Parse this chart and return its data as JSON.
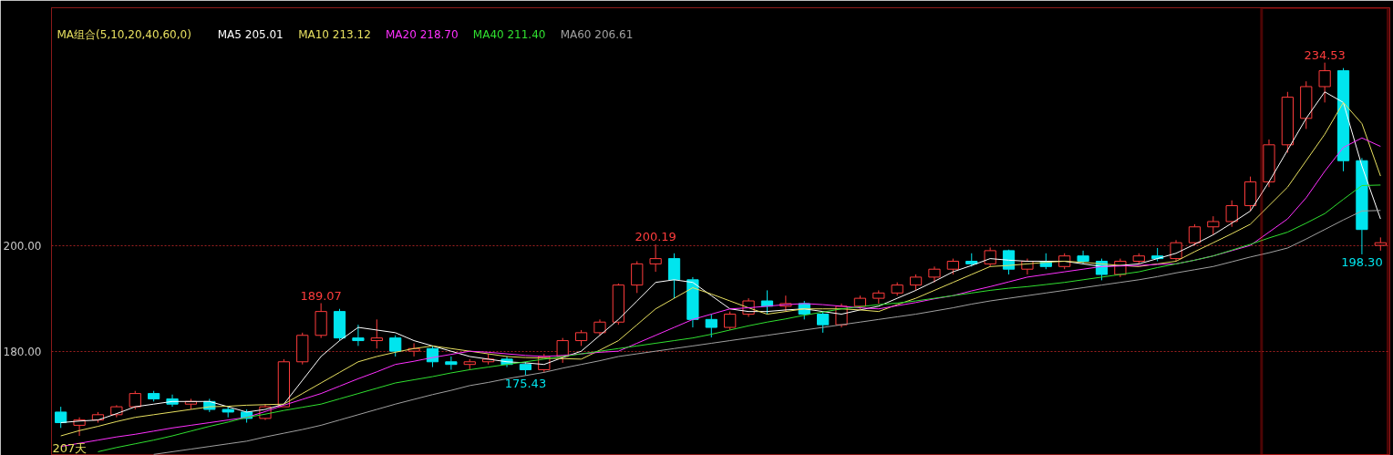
{
  "chart_data": {
    "type": "candlestick",
    "legend_title": "MA组合(5,10,20,40,60,0)",
    "legend": "top left",
    "grid": "y",
    "tick_labels": "y",
    "categories": [
      null,
      null,
      null,
      null,
      null,
      null,
      null,
      null,
      null,
      null,
      null,
      null,
      null,
      null,
      null,
      null,
      null,
      null,
      null,
      null,
      null,
      null,
      null,
      null,
      null,
      null,
      null,
      null,
      null,
      null,
      null,
      null,
      null,
      null,
      null,
      null,
      null,
      null,
      null,
      null,
      null,
      null,
      null,
      null,
      null,
      null,
      null,
      null,
      null,
      null,
      null,
      null,
      null,
      null,
      null,
      null,
      null,
      null,
      null,
      null,
      null,
      null,
      null,
      null,
      null,
      null,
      null,
      null,
      null,
      null,
      null,
      null
    ],
    "ylim": [
      160.3,
      244.9
    ],
    "yticks": [
      {
        "value": 180,
        "label": "180.00"
      },
      {
        "value": 200,
        "label": "200.00"
      }
    ],
    "ohlc": [
      [
        168.5,
        169.5,
        165.5,
        166.5
      ],
      [
        166,
        167.5,
        164,
        167
      ],
      [
        167,
        168.5,
        166.5,
        168
      ],
      [
        168,
        169.8,
        167.5,
        169.5
      ],
      [
        169.5,
        172.5,
        169,
        172
      ],
      [
        172,
        172.5,
        170.5,
        171
      ],
      [
        171,
        171.8,
        169.5,
        170
      ],
      [
        170,
        171,
        169,
        170.5
      ],
      [
        170.5,
        171,
        168.5,
        169
      ],
      [
        169,
        169.5,
        167.5,
        168.5
      ],
      [
        168.5,
        169,
        166.5,
        167.3
      ],
      [
        167.3,
        170,
        167,
        169.5
      ],
      [
        169.5,
        178.5,
        169.5,
        178
      ],
      [
        178,
        183.5,
        177.5,
        183
      ],
      [
        183,
        189.07,
        182.5,
        187.5
      ],
      [
        187.5,
        188,
        182,
        182.5
      ],
      [
        182.5,
        185,
        181,
        182
      ],
      [
        182,
        186,
        180.5,
        182.5
      ],
      [
        182.5,
        183,
        179,
        180
      ],
      [
        180,
        181.5,
        179,
        180.5
      ],
      [
        180.5,
        181,
        177,
        178
      ],
      [
        178,
        179,
        176.5,
        177.5
      ],
      [
        177.5,
        178.5,
        176.5,
        178
      ],
      [
        178,
        179.5,
        177.5,
        178.5
      ],
      [
        178.5,
        179,
        177,
        177.5
      ],
      [
        177.5,
        178,
        175.43,
        176.5
      ],
      [
        176.5,
        179.5,
        176,
        179
      ],
      [
        179,
        182.5,
        177.8,
        182
      ],
      [
        182,
        184,
        181,
        183.5
      ],
      [
        183.5,
        186,
        183,
        185.5
      ],
      [
        185.5,
        192.8,
        185,
        192.5
      ],
      [
        192.5,
        197,
        191,
        196.5
      ],
      [
        196.5,
        200.19,
        195,
        197.5
      ],
      [
        197.5,
        198.5,
        190,
        193.5
      ],
      [
        193.5,
        194,
        184.5,
        186
      ],
      [
        186,
        187,
        182.6,
        184.5
      ],
      [
        184.5,
        187.5,
        184,
        187
      ],
      [
        187,
        190,
        186.5,
        189.5
      ],
      [
        189.5,
        191.5,
        187,
        188.5
      ],
      [
        188.5,
        190.5,
        187.5,
        189
      ],
      [
        189,
        189.5,
        186,
        187
      ],
      [
        187,
        187.5,
        183.5,
        185
      ],
      [
        185,
        189,
        184.5,
        188.5
      ],
      [
        188.5,
        190.5,
        188,
        190
      ],
      [
        190,
        191.5,
        189,
        191
      ],
      [
        191,
        193,
        190.5,
        192.5
      ],
      [
        192.5,
        194.5,
        191.5,
        194
      ],
      [
        194,
        196,
        193,
        195.5
      ],
      [
        195.5,
        197.5,
        194.5,
        197
      ],
      [
        197,
        198.5,
        196,
        196.5
      ],
      [
        196.5,
        199.6,
        196,
        199
      ],
      [
        199,
        199.2,
        194.5,
        195.5
      ],
      [
        195.5,
        197.5,
        194.5,
        197
      ],
      [
        197,
        198.5,
        195.5,
        196
      ],
      [
        196,
        198.5,
        195.5,
        198
      ],
      [
        198,
        199,
        196.5,
        197
      ],
      [
        197,
        197.5,
        193.4,
        194.5
      ],
      [
        194.5,
        197.5,
        194,
        197
      ],
      [
        197,
        198.5,
        196.5,
        198
      ],
      [
        198,
        199.5,
        197,
        197.5
      ],
      [
        197.5,
        201,
        197,
        200.5
      ],
      [
        200.5,
        204,
        200,
        203.5
      ],
      [
        203.5,
        205.5,
        202,
        204.5
      ],
      [
        204.5,
        208.5,
        203.5,
        207.5
      ],
      [
        207.5,
        213,
        206.5,
        212
      ],
      [
        212,
        220,
        211,
        219
      ],
      [
        219,
        229,
        217.5,
        228
      ],
      [
        224,
        231,
        222,
        230
      ],
      [
        230,
        234.53,
        227,
        233
      ],
      [
        233,
        233.5,
        214,
        216
      ],
      [
        216,
        216.5,
        198.3,
        203
      ],
      [
        200,
        201.5,
        199,
        200.5
      ]
    ],
    "colors": [
      "#00e5ee",
      "#ff3c3c",
      "#ff3c3c",
      "#ff3c3c",
      "#ff3c3c",
      "#00e5ee",
      "#00e5ee",
      "#ff3c3c",
      "#00e5ee",
      "#00e5ee",
      "#00e5ee",
      "#ff3c3c",
      "#ff3c3c",
      "#ff3c3c",
      "#ff3c3c",
      "#00e5ee",
      "#00e5ee",
      "#ff3c3c",
      "#00e5ee",
      "#ff3c3c",
      "#00e5ee",
      "#00e5ee",
      "#ff3c3c",
      "#ff3c3c",
      "#00e5ee",
      "#00e5ee",
      "#ff3c3c",
      "#ff3c3c",
      "#ff3c3c",
      "#ff3c3c",
      "#ff3c3c",
      "#ff3c3c",
      "#ff3c3c",
      "#00e5ee",
      "#00e5ee",
      "#00e5ee",
      "#ff3c3c",
      "#ff3c3c",
      "#00e5ee",
      "#ff3c3c",
      "#00e5ee",
      "#00e5ee",
      "#ff3c3c",
      "#ff3c3c",
      "#ff3c3c",
      "#ff3c3c",
      "#ff3c3c",
      "#ff3c3c",
      "#ff3c3c",
      "#00e5ee",
      "#ff3c3c",
      "#00e5ee",
      "#ff3c3c",
      "#00e5ee",
      "#ff3c3c",
      "#00e5ee",
      "#00e5ee",
      "#ff3c3c",
      "#ff3c3c",
      "#00e5ee",
      "#ff3c3c",
      "#ff3c3c",
      "#ff3c3c",
      "#ff3c3c",
      "#ff3c3c",
      "#ff3c3c",
      "#ff3c3c",
      "#ff3c3c",
      "#ff3c3c",
      "#00e5ee",
      "#00e5ee",
      "#ff3c3c"
    ],
    "value_labels": [
      null,
      null,
      null,
      null,
      null,
      null,
      null,
      null,
      null,
      null,
      null,
      null,
      null,
      null,
      "189.07",
      null,
      null,
      null,
      null,
      null,
      null,
      null,
      null,
      null,
      null,
      "175.43",
      null,
      null,
      null,
      null,
      null,
      null,
      "200.19",
      null,
      null,
      null,
      null,
      null,
      null,
      null,
      null,
      null,
      null,
      null,
      null,
      null,
      null,
      null,
      null,
      null,
      null,
      null,
      null,
      null,
      null,
      null,
      null,
      null,
      null,
      null,
      null,
      null,
      null,
      null,
      null,
      null,
      null,
      null,
      "234.53",
      null,
      "198.30",
      null
    ],
    "series": [
      {
        "name": "MA5 205.01",
        "type": "line",
        "color": "#ffffff",
        "values": [
          166.5,
          166.8,
          167,
          168.2,
          169.5,
          170,
          170.5,
          170.5,
          170.5,
          169.5,
          168.5,
          169,
          170,
          174.5,
          179,
          182,
          184.5,
          184,
          183.5,
          182,
          181,
          180,
          179,
          178.5,
          178,
          177.8,
          177.5,
          178.8,
          180,
          183,
          186,
          189.5,
          193,
          193.5,
          193,
          190.5,
          188,
          187.5,
          187.5,
          187.8,
          188,
          187.5,
          187,
          187.8,
          188.5,
          190,
          191.5,
          193.2,
          195,
          196.2,
          197.5,
          197.2,
          197,
          197,
          197,
          196.5,
          196,
          196.2,
          196.5,
          197.5,
          198.5,
          200.2,
          202,
          204.2,
          206.5,
          212,
          218,
          224,
          229,
          227,
          215,
          205.0
        ]
      },
      {
        "name": "MA10 213.12",
        "type": "line",
        "color": "#e8e060",
        "values": [
          164,
          165,
          165.8,
          166.7,
          167.5,
          168,
          168.5,
          169,
          169.5,
          169.6,
          169.8,
          169.9,
          170,
          172,
          174,
          176,
          178,
          179,
          179.8,
          180.5,
          181,
          180.5,
          180,
          179.5,
          179,
          178.8,
          178.7,
          178.6,
          178.5,
          180.2,
          182,
          185,
          188,
          190,
          192,
          190.8,
          189.5,
          188.2,
          187,
          187.5,
          188,
          188,
          188,
          187.8,
          187.5,
          188.8,
          190,
          191.5,
          193,
          194.5,
          196,
          196.2,
          196.5,
          196.8,
          197,
          196.8,
          196.5,
          196.2,
          196,
          196.5,
          197,
          198.8,
          200.5,
          202.2,
          204,
          207.5,
          211,
          216,
          221,
          227,
          223,
          213.1
        ]
      },
      {
        "name": "MA20 218.70",
        "type": "line",
        "color": "#ff30ff",
        "values": [
          162,
          162.6,
          163.2,
          163.8,
          164.3,
          164.9,
          165.5,
          166,
          166.5,
          167,
          167.5,
          168.6,
          169.8,
          170.9,
          172,
          173.4,
          174.8,
          176.1,
          177.5,
          178.1,
          178.8,
          179.4,
          180,
          179.8,
          179.5,
          179.2,
          179,
          179.2,
          179.5,
          179.8,
          180,
          181.5,
          183,
          184.5,
          186,
          187,
          188,
          188.2,
          188.5,
          188.8,
          189,
          188.8,
          188.5,
          188.2,
          188,
          188.6,
          189.2,
          189.9,
          190.5,
          191.4,
          192.2,
          193.1,
          194,
          194.5,
          195,
          195.5,
          196,
          196.1,
          196.2,
          196.4,
          196.5,
          197.2,
          198,
          199,
          200,
          202.5,
          205,
          209,
          214,
          218.5,
          220.3,
          218.7
        ]
      },
      {
        "name": "MA40 211.40",
        "type": "line",
        "color": "#30e030",
        "values": [
          null,
          null,
          161,
          161.8,
          162.5,
          163.2,
          164,
          164.9,
          165.8,
          166.6,
          167.5,
          168.1,
          168.8,
          169.4,
          170,
          171,
          172,
          173,
          174,
          174.6,
          175.2,
          175.9,
          176.5,
          177,
          177.5,
          178,
          178.5,
          179,
          179.5,
          180,
          180.5,
          181,
          181.5,
          182,
          182.5,
          183.2,
          184,
          184.8,
          185.5,
          186.1,
          186.8,
          187.4,
          188,
          188.4,
          188.8,
          189.1,
          189.5,
          190,
          190.5,
          191,
          191.5,
          191.9,
          192.2,
          192.6,
          193,
          193.5,
          194,
          194.5,
          195,
          195.8,
          196.5,
          197.2,
          198,
          199.1,
          200.2,
          201.4,
          202.5,
          204.2,
          206,
          208.7,
          211.3,
          211.4
        ]
      },
      {
        "name": "MA60 206.61",
        "type": "line",
        "color": "#a0a0a0",
        "values": [
          null,
          null,
          null,
          null,
          null,
          160.5,
          161,
          161.5,
          162,
          162.5,
          163,
          163.8,
          164.5,
          165.2,
          166,
          167,
          168,
          169,
          170,
          170.9,
          171.8,
          172.6,
          173.5,
          174.1,
          174.8,
          175.4,
          176,
          176.8,
          177.5,
          178.2,
          179,
          179.5,
          180,
          180.5,
          181,
          181.5,
          182,
          182.5,
          183,
          183.5,
          184,
          184.5,
          185,
          185.5,
          186,
          186.5,
          187,
          187.6,
          188.2,
          188.9,
          189.5,
          190,
          190.5,
          191,
          191.5,
          192,
          192.5,
          193,
          193.5,
          194.1,
          194.8,
          195.4,
          196,
          196.9,
          197.8,
          198.6,
          199.5,
          201.2,
          203,
          204.8,
          206.5,
          206.6
        ]
      }
    ],
    "annotations": [
      "207天"
    ]
  }
}
